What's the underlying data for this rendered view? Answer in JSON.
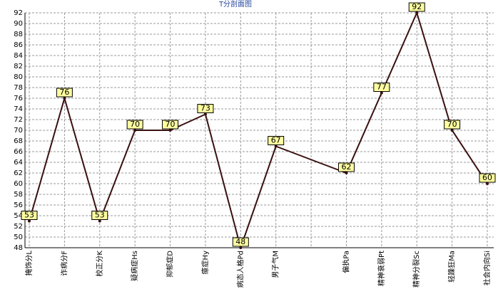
{
  "chart_data": {
    "type": "line",
    "title": "T分剖面图",
    "categories": [
      "掩饰分L",
      "诈病分F",
      "校正分K",
      "疑病症Hs",
      "抑郁症D",
      "癔症Hy",
      "病态人格Pd",
      "男子气M",
      null,
      "偏执Pa",
      "精神衰弱Pt",
      "精神分裂Sc",
      "轻躁狂Ma",
      "社会内向Si"
    ],
    "values": [
      53,
      76,
      53,
      70,
      70,
      73,
      48,
      67,
      null,
      62,
      77,
      92,
      70,
      60
    ],
    "color": "#3a1010",
    "ylim": [
      48,
      92
    ],
    "yticks": [
      48,
      50,
      52,
      54,
      56,
      58,
      60,
      62,
      64,
      66,
      68,
      70,
      72,
      74,
      76,
      78,
      80,
      82,
      84,
      86,
      88,
      90,
      92
    ],
    "grid": true
  }
}
